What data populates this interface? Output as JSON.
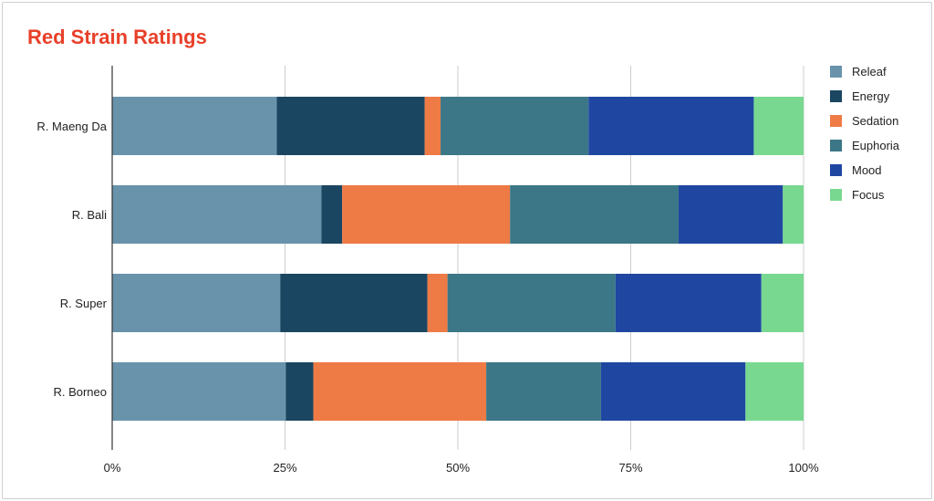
{
  "chart_data": {
    "type": "bar",
    "orientation": "horizontal",
    "stacked": "percent",
    "title": "Red Strain Ratings",
    "categories": [
      "R. Maeng Da",
      "R. Bali",
      "R. Super",
      "R. Borneo"
    ],
    "series": [
      {
        "name": "Releaf",
        "color": "#6893ab",
        "values": [
          23.8,
          30.3,
          24.3,
          25.1
        ]
      },
      {
        "name": "Energy",
        "color": "#1b4661",
        "values": [
          21.4,
          3.0,
          21.3,
          4.0
        ]
      },
      {
        "name": "Sedation",
        "color": "#ee7a45",
        "values": [
          2.3,
          24.3,
          2.9,
          25.0
        ]
      },
      {
        "name": "Euphoria",
        "color": "#3b7786",
        "values": [
          21.4,
          24.4,
          24.3,
          16.6
        ]
      },
      {
        "name": "Mood",
        "color": "#1f47a2",
        "values": [
          23.9,
          15.1,
          21.1,
          20.9
        ]
      },
      {
        "name": "Focus",
        "color": "#78d890",
        "values": [
          7.2,
          3.0,
          6.1,
          8.4
        ]
      }
    ],
    "x_ticks": [
      "0%",
      "25%",
      "50%",
      "75%",
      "100%"
    ],
    "xlim": [
      0,
      100
    ],
    "grid": true,
    "legend": "right"
  }
}
